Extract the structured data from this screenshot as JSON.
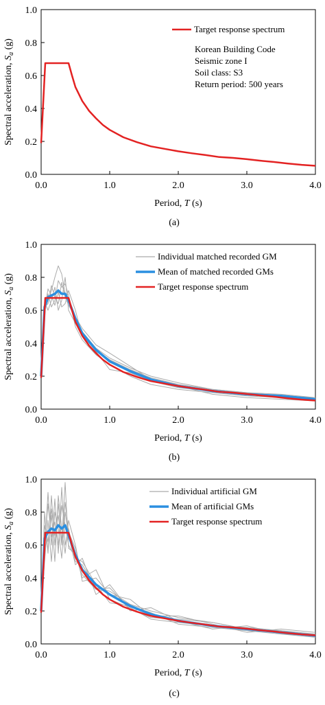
{
  "chart_data": [
    {
      "type": "line",
      "panel_label": "(a)",
      "xlabel": "Period, T (s)",
      "ylabel": "Spectral acceleration, Sa (g)",
      "xlim": [
        0,
        4.0
      ],
      "ylim": [
        0,
        1.0
      ],
      "xticks": [
        "0.0",
        "1.0",
        "2.0",
        "3.0",
        "4.0"
      ],
      "yticks": [
        "0.0",
        "0.2",
        "0.4",
        "0.6",
        "0.8",
        "1.0"
      ],
      "grid": false,
      "legend_position": "top-right",
      "annotations": [
        "Korean Building Code",
        "Seismic zone I",
        "Soil class: S3",
        "Return period: 500 years"
      ],
      "series": [
        {
          "name": "Target response spectrum",
          "color": "#e32222",
          "role": "target",
          "x": [
            0,
            0.06,
            0.4,
            0.45,
            0.5,
            0.6,
            0.7,
            0.8,
            0.9,
            1.0,
            1.2,
            1.4,
            1.6,
            1.8,
            2.0,
            2.2,
            2.4,
            2.6,
            2.8,
            3.0,
            3.2,
            3.4,
            3.6,
            3.8,
            4.0
          ],
          "y": [
            0.19,
            0.675,
            0.675,
            0.6,
            0.53,
            0.445,
            0.385,
            0.34,
            0.3,
            0.27,
            0.225,
            0.195,
            0.17,
            0.155,
            0.14,
            0.128,
            0.117,
            0.105,
            0.1,
            0.092,
            0.083,
            0.075,
            0.066,
            0.058,
            0.052
          ]
        }
      ]
    },
    {
      "type": "line",
      "panel_label": "(b)",
      "xlabel": "Period, T (s)",
      "ylabel": "Spectral acceleration, Sa (g)",
      "xlim": [
        0,
        4.0
      ],
      "ylim": [
        0,
        1.0
      ],
      "xticks": [
        "0.0",
        "1.0",
        "2.0",
        "3.0",
        "4.0"
      ],
      "yticks": [
        "0.0",
        "0.2",
        "0.4",
        "0.6",
        "0.8",
        "1.0"
      ],
      "grid": false,
      "legend_position": "top-right",
      "series": [
        {
          "name": "Individual matched recorded GM",
          "color": "#aaaaaa",
          "role": "individual",
          "curves": [
            {
              "x": [
                0,
                0.05,
                0.1,
                0.15,
                0.2,
                0.25,
                0.3,
                0.35,
                0.4,
                0.5,
                0.6,
                0.8,
                1.0,
                1.3,
                1.6,
                2.0,
                2.5,
                3.0,
                3.5,
                4.0
              ],
              "y": [
                0.2,
                0.6,
                0.66,
                0.72,
                0.8,
                0.87,
                0.82,
                0.7,
                0.66,
                0.55,
                0.47,
                0.37,
                0.31,
                0.25,
                0.2,
                0.16,
                0.12,
                0.1,
                0.08,
                0.07
              ]
            },
            {
              "x": [
                0,
                0.05,
                0.1,
                0.15,
                0.2,
                0.25,
                0.3,
                0.35,
                0.4,
                0.5,
                0.6,
                0.8,
                1.0,
                1.3,
                1.6,
                2.0,
                2.5,
                3.0,
                3.5,
                4.0
              ],
              "y": [
                0.2,
                0.58,
                0.7,
                0.62,
                0.66,
                0.78,
                0.74,
                0.76,
                0.69,
                0.5,
                0.42,
                0.33,
                0.27,
                0.2,
                0.15,
                0.12,
                0.1,
                0.08,
                0.07,
                0.05
              ]
            },
            {
              "x": [
                0,
                0.05,
                0.1,
                0.15,
                0.2,
                0.25,
                0.3,
                0.35,
                0.4,
                0.5,
                0.6,
                0.8,
                1.0,
                1.3,
                1.6,
                2.0,
                2.5,
                3.0,
                3.5,
                4.0
              ],
              "y": [
                0.2,
                0.62,
                0.64,
                0.75,
                0.68,
                0.64,
                0.77,
                0.68,
                0.63,
                0.56,
                0.49,
                0.39,
                0.34,
                0.26,
                0.18,
                0.14,
                0.09,
                0.07,
                0.06,
                0.05
              ]
            },
            {
              "x": [
                0,
                0.05,
                0.1,
                0.15,
                0.2,
                0.25,
                0.3,
                0.35,
                0.4,
                0.5,
                0.6,
                0.8,
                1.0,
                1.3,
                1.6,
                2.0,
                2.5,
                3.0,
                3.5,
                4.0
              ],
              "y": [
                0.2,
                0.65,
                0.6,
                0.66,
                0.74,
                0.6,
                0.66,
                0.8,
                0.6,
                0.52,
                0.45,
                0.35,
                0.24,
                0.22,
                0.17,
                0.13,
                0.11,
                0.09,
                0.08,
                0.06
              ]
            },
            {
              "x": [
                0,
                0.05,
                0.1,
                0.15,
                0.2,
                0.25,
                0.3,
                0.35,
                0.4,
                0.5,
                0.6,
                0.8,
                1.0,
                1.3,
                1.6,
                2.0,
                2.5,
                3.0,
                3.5,
                4.0
              ],
              "y": [
                0.2,
                0.6,
                0.73,
                0.69,
                0.63,
                0.71,
                0.62,
                0.64,
                0.72,
                0.6,
                0.44,
                0.36,
                0.3,
                0.24,
                0.19,
                0.15,
                0.12,
                0.1,
                0.09,
                0.07
              ]
            }
          ]
        },
        {
          "name": "Mean of matched recorded GMs",
          "color": "#2b8fe0",
          "role": "mean",
          "x": [
            0,
            0.05,
            0.1,
            0.15,
            0.2,
            0.25,
            0.3,
            0.35,
            0.4,
            0.5,
            0.6,
            0.8,
            1.0,
            1.3,
            1.6,
            2.0,
            2.5,
            3.0,
            3.5,
            4.0
          ],
          "y": [
            0.2,
            0.62,
            0.68,
            0.69,
            0.7,
            0.72,
            0.7,
            0.7,
            0.66,
            0.55,
            0.46,
            0.36,
            0.29,
            0.23,
            0.18,
            0.14,
            0.11,
            0.09,
            0.08,
            0.06
          ]
        },
        {
          "name": "Target response spectrum",
          "color": "#e32222",
          "role": "target",
          "x": [
            0,
            0.06,
            0.4,
            0.45,
            0.5,
            0.6,
            0.7,
            0.8,
            0.9,
            1.0,
            1.2,
            1.4,
            1.6,
            1.8,
            2.0,
            2.2,
            2.4,
            2.6,
            2.8,
            3.0,
            3.2,
            3.4,
            3.6,
            3.8,
            4.0
          ],
          "y": [
            0.19,
            0.675,
            0.675,
            0.6,
            0.53,
            0.445,
            0.385,
            0.34,
            0.3,
            0.27,
            0.225,
            0.195,
            0.17,
            0.155,
            0.14,
            0.128,
            0.117,
            0.105,
            0.1,
            0.092,
            0.083,
            0.075,
            0.066,
            0.058,
            0.052
          ]
        }
      ]
    },
    {
      "type": "line",
      "panel_label": "(c)",
      "xlabel": "Period, T (s)",
      "ylabel": "Spectral acceleration, Sa (g)",
      "xlim": [
        0,
        4.0
      ],
      "ylim": [
        0,
        1.0
      ],
      "xticks": [
        "0.0",
        "1.0",
        "2.0",
        "3.0",
        "4.0"
      ],
      "yticks": [
        "0.0",
        "0.2",
        "0.4",
        "0.6",
        "0.8",
        "1.0"
      ],
      "grid": false,
      "legend_position": "top-right",
      "series": [
        {
          "name": "Individual artificial GM",
          "color": "#aaaaaa",
          "role": "individual",
          "curves": [
            {
              "x": [
                0,
                0.05,
                0.1,
                0.15,
                0.2,
                0.25,
                0.3,
                0.35,
                0.4,
                0.5,
                0.6,
                0.8,
                1.0,
                1.3,
                1.6,
                2.0,
                2.5,
                3.0,
                3.5,
                4.0
              ],
              "y": [
                0.2,
                0.55,
                0.92,
                0.6,
                0.88,
                0.55,
                0.95,
                0.6,
                0.7,
                0.5,
                0.48,
                0.34,
                0.32,
                0.24,
                0.2,
                0.16,
                0.13,
                0.09,
                0.07,
                0.06
              ]
            },
            {
              "x": [
                0,
                0.05,
                0.1,
                0.15,
                0.2,
                0.25,
                0.3,
                0.35,
                0.4,
                0.5,
                0.6,
                0.8,
                1.0,
                1.3,
                1.6,
                2.0,
                2.5,
                3.0,
                3.5,
                4.0
              ],
              "y": [
                0.2,
                0.8,
                0.55,
                0.9,
                0.6,
                0.85,
                0.62,
                0.98,
                0.58,
                0.55,
                0.4,
                0.45,
                0.27,
                0.22,
                0.15,
                0.13,
                0.11,
                0.1,
                0.08,
                0.05
              ]
            },
            {
              "x": [
                0,
                0.05,
                0.1,
                0.15,
                0.2,
                0.25,
                0.3,
                0.35,
                0.4,
                0.5,
                0.6,
                0.8,
                1.0,
                1.3,
                1.6,
                2.0,
                2.5,
                3.0,
                3.5,
                4.0
              ],
              "y": [
                0.2,
                0.5,
                0.75,
                0.5,
                0.8,
                0.7,
                0.52,
                0.8,
                0.66,
                0.48,
                0.52,
                0.3,
                0.36,
                0.2,
                0.22,
                0.14,
                0.09,
                0.11,
                0.06,
                0.04
              ]
            },
            {
              "x": [
                0,
                0.05,
                0.1,
                0.15,
                0.2,
                0.25,
                0.3,
                0.35,
                0.4,
                0.5,
                0.6,
                0.8,
                1.0,
                1.3,
                1.6,
                2.0,
                2.5,
                3.0,
                3.5,
                4.0
              ],
              "y": [
                0.2,
                0.72,
                0.62,
                0.78,
                0.5,
                0.9,
                0.7,
                0.55,
                0.75,
                0.6,
                0.38,
                0.4,
                0.3,
                0.27,
                0.17,
                0.17,
                0.12,
                0.07,
                0.09,
                0.07
              ]
            },
            {
              "x": [
                0,
                0.05,
                0.1,
                0.15,
                0.2,
                0.25,
                0.3,
                0.35,
                0.4,
                0.5,
                0.6,
                0.8,
                1.0,
                1.3,
                1.6,
                2.0,
                2.5,
                3.0,
                3.5,
                4.0
              ],
              "y": [
                0.2,
                0.6,
                0.85,
                0.65,
                0.74,
                0.6,
                0.84,
                0.72,
                0.6,
                0.52,
                0.5,
                0.36,
                0.25,
                0.23,
                0.19,
                0.12,
                0.1,
                0.08,
                0.06,
                0.05
              ]
            },
            {
              "x": [
                0,
                0.05,
                0.1,
                0.15,
                0.2,
                0.25,
                0.3,
                0.35,
                0.4,
                0.5,
                0.6,
                0.8,
                1.0,
                1.3,
                1.6,
                2.0,
                2.5,
                3.0,
                3.5,
                4.0
              ],
              "y": [
                0.2,
                0.68,
                0.58,
                0.82,
                0.66,
                0.78,
                0.6,
                0.86,
                0.68,
                0.58,
                0.42,
                0.33,
                0.34,
                0.21,
                0.16,
                0.15,
                0.13,
                0.09,
                0.08,
                0.06
              ]
            }
          ]
        },
        {
          "name": "Mean of artificial GMs",
          "color": "#2b8fe0",
          "role": "mean",
          "x": [
            0,
            0.05,
            0.1,
            0.15,
            0.2,
            0.25,
            0.3,
            0.35,
            0.4,
            0.5,
            0.6,
            0.8,
            1.0,
            1.3,
            1.6,
            2.0,
            2.5,
            3.0,
            3.5,
            4.0
          ],
          "y": [
            0.2,
            0.64,
            0.68,
            0.7,
            0.69,
            0.72,
            0.7,
            0.72,
            0.66,
            0.54,
            0.45,
            0.36,
            0.3,
            0.23,
            0.18,
            0.14,
            0.11,
            0.09,
            0.07,
            0.05
          ]
        },
        {
          "name": "Target response spectrum",
          "color": "#e32222",
          "role": "target",
          "x": [
            0,
            0.06,
            0.4,
            0.45,
            0.5,
            0.6,
            0.7,
            0.8,
            0.9,
            1.0,
            1.2,
            1.4,
            1.6,
            1.8,
            2.0,
            2.2,
            2.4,
            2.6,
            2.8,
            3.0,
            3.2,
            3.4,
            3.6,
            3.8,
            4.0
          ],
          "y": [
            0.19,
            0.675,
            0.675,
            0.6,
            0.53,
            0.445,
            0.385,
            0.34,
            0.3,
            0.27,
            0.225,
            0.195,
            0.17,
            0.155,
            0.14,
            0.128,
            0.117,
            0.105,
            0.1,
            0.092,
            0.083,
            0.075,
            0.066,
            0.058,
            0.052
          ]
        }
      ]
    }
  ]
}
